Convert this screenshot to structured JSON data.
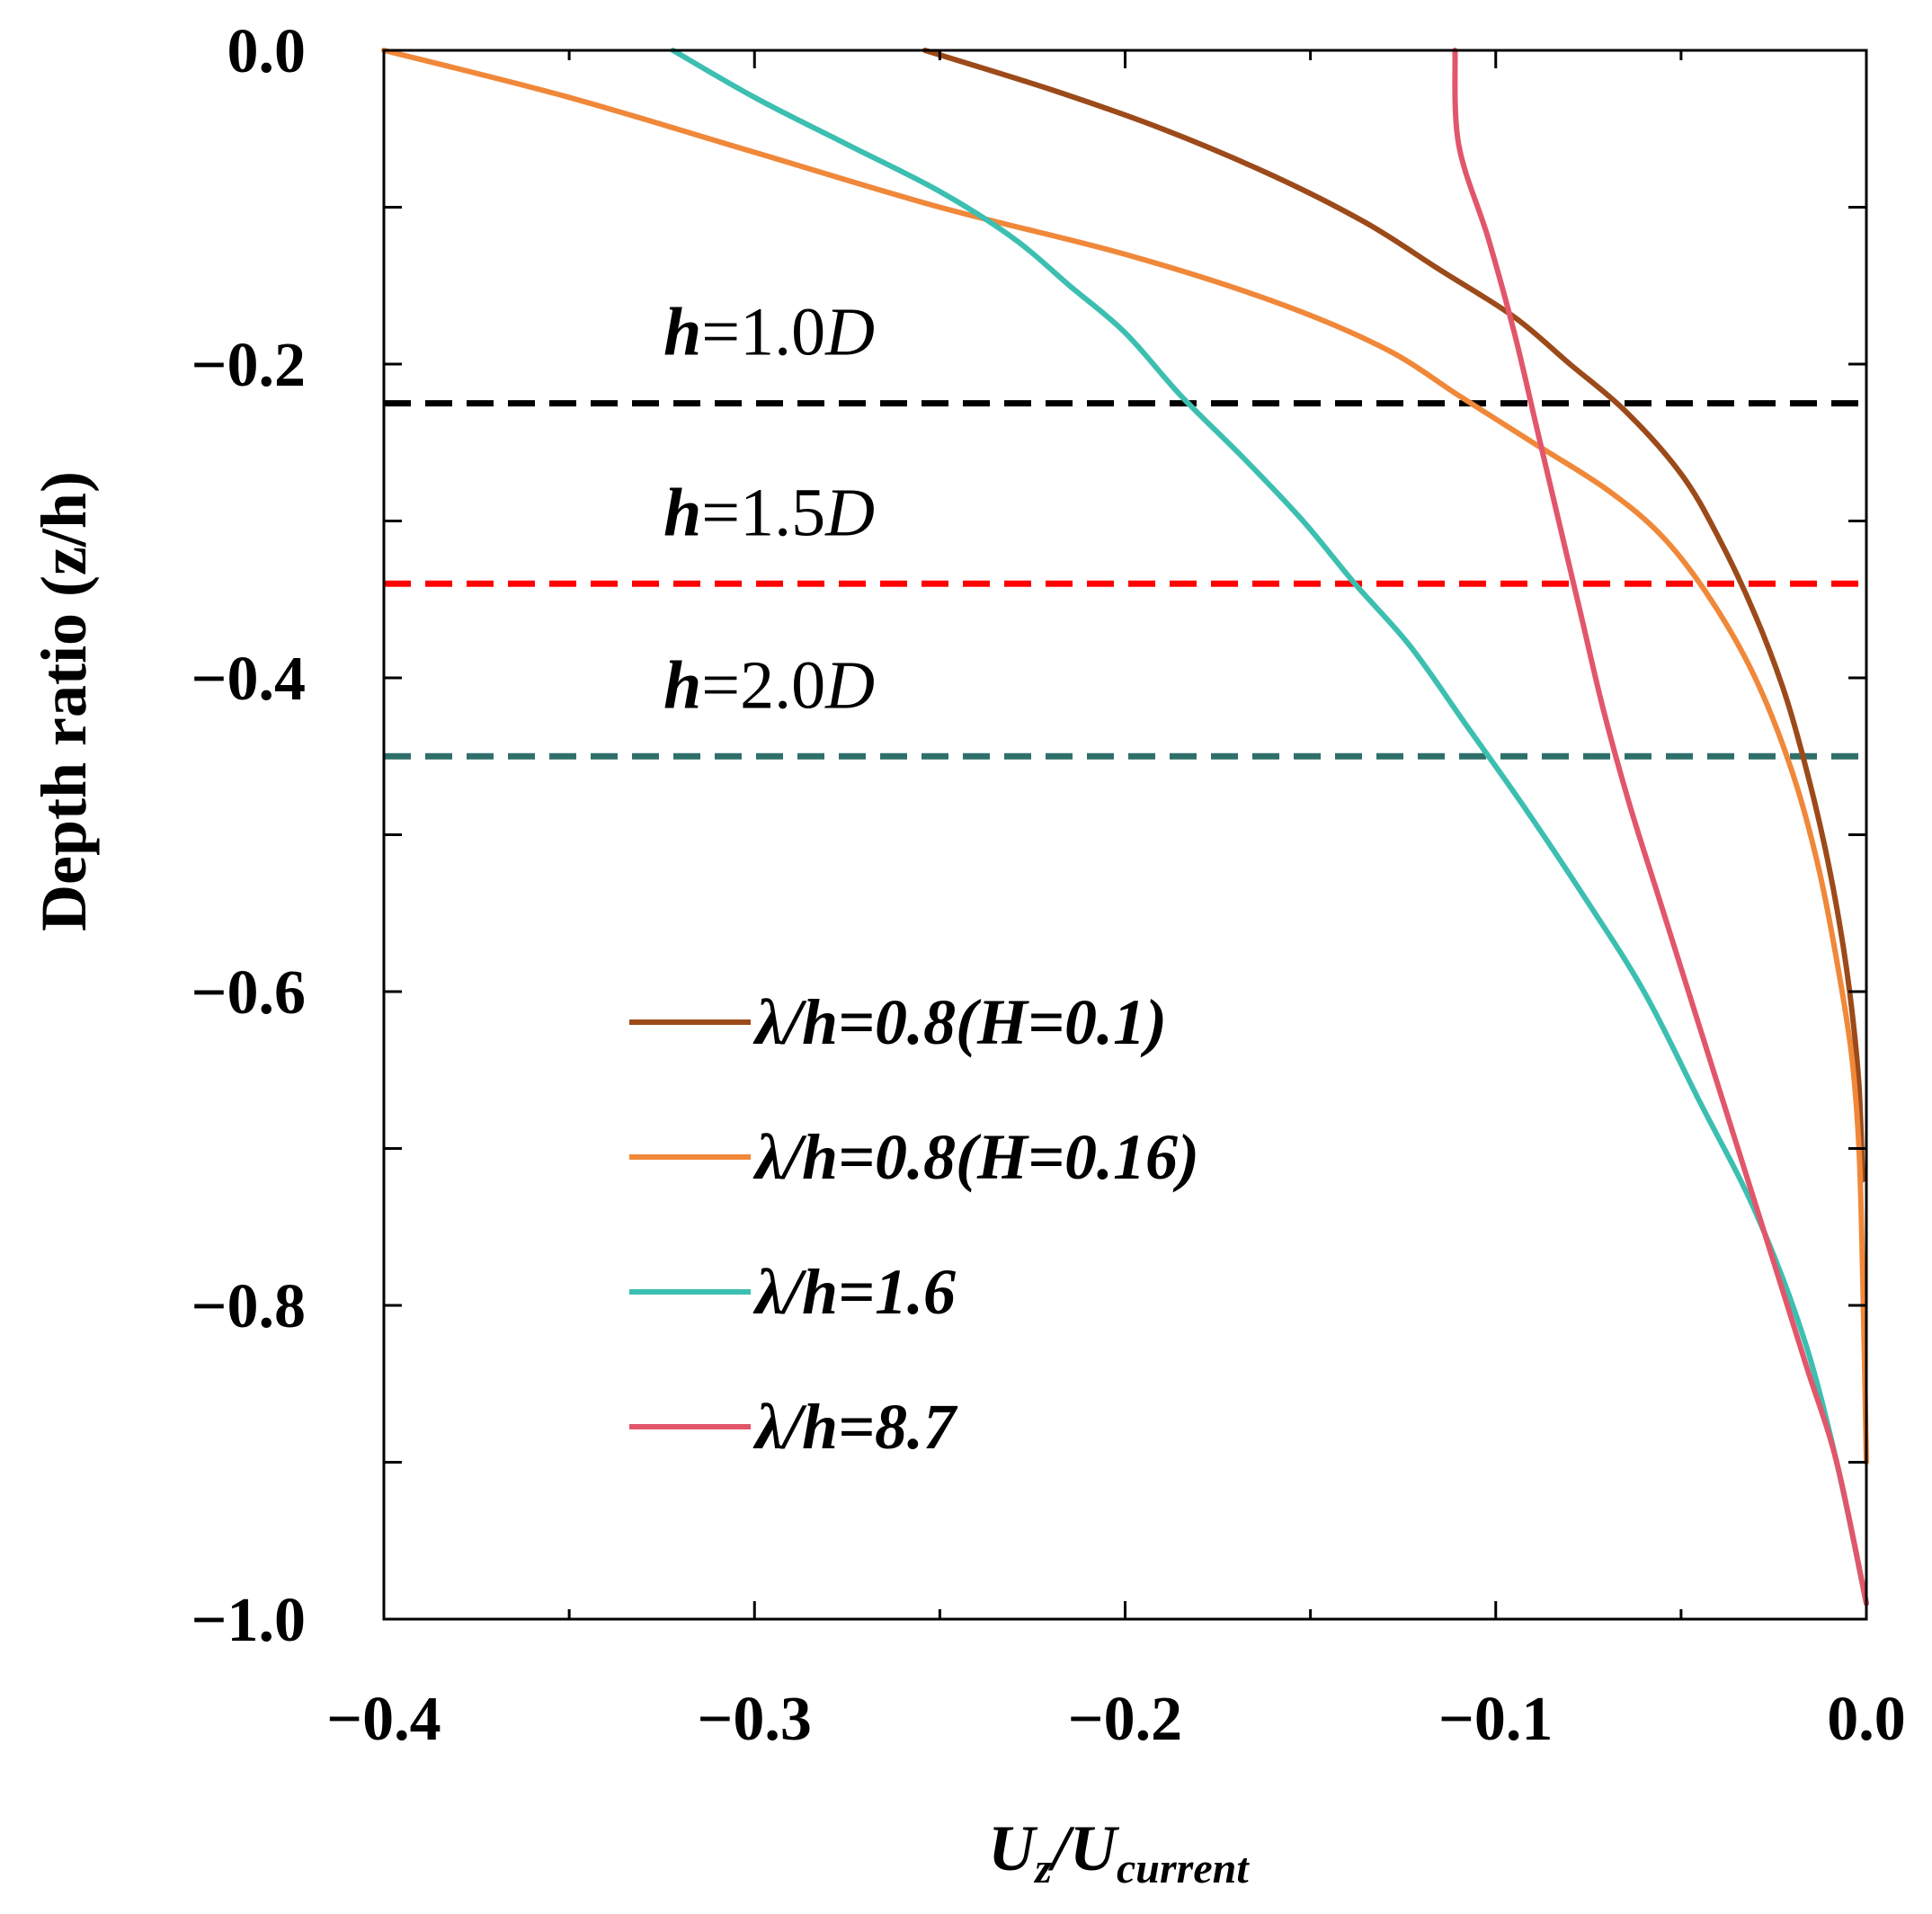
{
  "chart_data": {
    "type": "line",
    "title": "",
    "xlabel_main": "U",
    "xlabel_sub1": "z",
    "xlabel_slash": "/U",
    "xlabel_sub2": "current",
    "ylabel": "Depth ratio (z/h)",
    "xlim": [
      -0.4,
      0.0
    ],
    "ylim": [
      -1.0,
      0.0
    ],
    "x_ticks": [
      -0.4,
      -0.3,
      -0.2,
      -0.1,
      0.0
    ],
    "x_tick_labels": [
      "−0.4",
      "−0.3",
      "−0.2",
      "−0.1",
      "0.0"
    ],
    "y_ticks": [
      0.0,
      -0.2,
      -0.4,
      -0.6,
      -0.8,
      -1.0
    ],
    "y_tick_labels": [
      "0.0",
      "−0.2",
      "−0.4",
      "−0.6",
      "−0.8",
      "−1.0"
    ],
    "grid": false,
    "legend_position": "lower-center",
    "series": [
      {
        "name": "λ/h=0.8(H=0.1)",
        "color": "#9c4a1a",
        "points": [
          [
            -0.254,
            0.0
          ],
          [
            -0.22,
            -0.025
          ],
          [
            -0.19,
            -0.05
          ],
          [
            -0.16,
            -0.08
          ],
          [
            -0.135,
            -0.11
          ],
          [
            -0.115,
            -0.14
          ],
          [
            -0.095,
            -0.17
          ],
          [
            -0.08,
            -0.2
          ],
          [
            -0.065,
            -0.23
          ],
          [
            -0.05,
            -0.27
          ],
          [
            -0.04,
            -0.31
          ],
          [
            -0.03,
            -0.36
          ],
          [
            -0.022,
            -0.41
          ],
          [
            -0.016,
            -0.46
          ],
          [
            -0.011,
            -0.51
          ],
          [
            -0.007,
            -0.56
          ],
          [
            -0.004,
            -0.61
          ],
          [
            -0.002,
            -0.66
          ],
          [
            -0.001,
            -0.72
          ]
        ]
      },
      {
        "name": "λ/h=0.8(H=0.16)",
        "color": "#f0883a",
        "points": [
          [
            -0.4,
            0.0
          ],
          [
            -0.35,
            -0.03
          ],
          [
            -0.3,
            -0.065
          ],
          [
            -0.25,
            -0.1
          ],
          [
            -0.2,
            -0.13
          ],
          [
            -0.16,
            -0.16
          ],
          [
            -0.13,
            -0.19
          ],
          [
            -0.11,
            -0.22
          ],
          [
            -0.09,
            -0.25
          ],
          [
            -0.07,
            -0.28
          ],
          [
            -0.055,
            -0.31
          ],
          [
            -0.042,
            -0.35
          ],
          [
            -0.03,
            -0.4
          ],
          [
            -0.02,
            -0.46
          ],
          [
            -0.013,
            -0.52
          ],
          [
            -0.008,
            -0.58
          ],
          [
            -0.004,
            -0.64
          ],
          [
            -0.002,
            -0.7
          ],
          [
            -0.001,
            -0.78
          ],
          [
            0.0,
            -0.9
          ]
        ]
      },
      {
        "name": "λ/h=1.6",
        "color": "#3cbfb1",
        "points": [
          [
            -0.322,
            0.0
          ],
          [
            -0.3,
            -0.03
          ],
          [
            -0.275,
            -0.06
          ],
          [
            -0.25,
            -0.09
          ],
          [
            -0.23,
            -0.12
          ],
          [
            -0.215,
            -0.15
          ],
          [
            -0.2,
            -0.18
          ],
          [
            -0.185,
            -0.22
          ],
          [
            -0.168,
            -0.26
          ],
          [
            -0.152,
            -0.3
          ],
          [
            -0.138,
            -0.34
          ],
          [
            -0.123,
            -0.38
          ],
          [
            -0.108,
            -0.43
          ],
          [
            -0.093,
            -0.48
          ],
          [
            -0.076,
            -0.54
          ],
          [
            -0.06,
            -0.6
          ],
          [
            -0.045,
            -0.67
          ],
          [
            -0.03,
            -0.74
          ],
          [
            -0.017,
            -0.82
          ],
          [
            -0.008,
            -0.9
          ],
          [
            0.0,
            -0.99
          ]
        ]
      },
      {
        "name": "λ/h=8.7",
        "color": "#e2566a",
        "points": [
          [
            -0.111,
            0.0
          ],
          [
            -0.11,
            -0.06
          ],
          [
            -0.102,
            -0.12
          ],
          [
            -0.095,
            -0.18
          ],
          [
            -0.089,
            -0.24
          ],
          [
            -0.083,
            -0.3
          ],
          [
            -0.077,
            -0.36
          ],
          [
            -0.071,
            -0.42
          ],
          [
            -0.064,
            -0.48
          ],
          [
            -0.056,
            -0.54
          ],
          [
            -0.048,
            -0.6
          ],
          [
            -0.04,
            -0.66
          ],
          [
            -0.032,
            -0.72
          ],
          [
            -0.024,
            -0.78
          ],
          [
            -0.016,
            -0.84
          ],
          [
            -0.008,
            -0.9
          ],
          [
            0.0,
            -0.99
          ]
        ]
      }
    ],
    "reference_lines": [
      {
        "y": -0.225,
        "color": "#000000",
        "label_main": "h",
        "label_rest": "=1.0",
        "label_tail": "D"
      },
      {
        "y": -0.34,
        "color": "#ff0000",
        "label_main": "h",
        "label_rest": "=1.5",
        "label_tail": "D"
      },
      {
        "y": -0.45,
        "color": "#2f6f6a",
        "label_main": "h",
        "label_rest": "=2.0",
        "label_tail": "D"
      }
    ]
  }
}
